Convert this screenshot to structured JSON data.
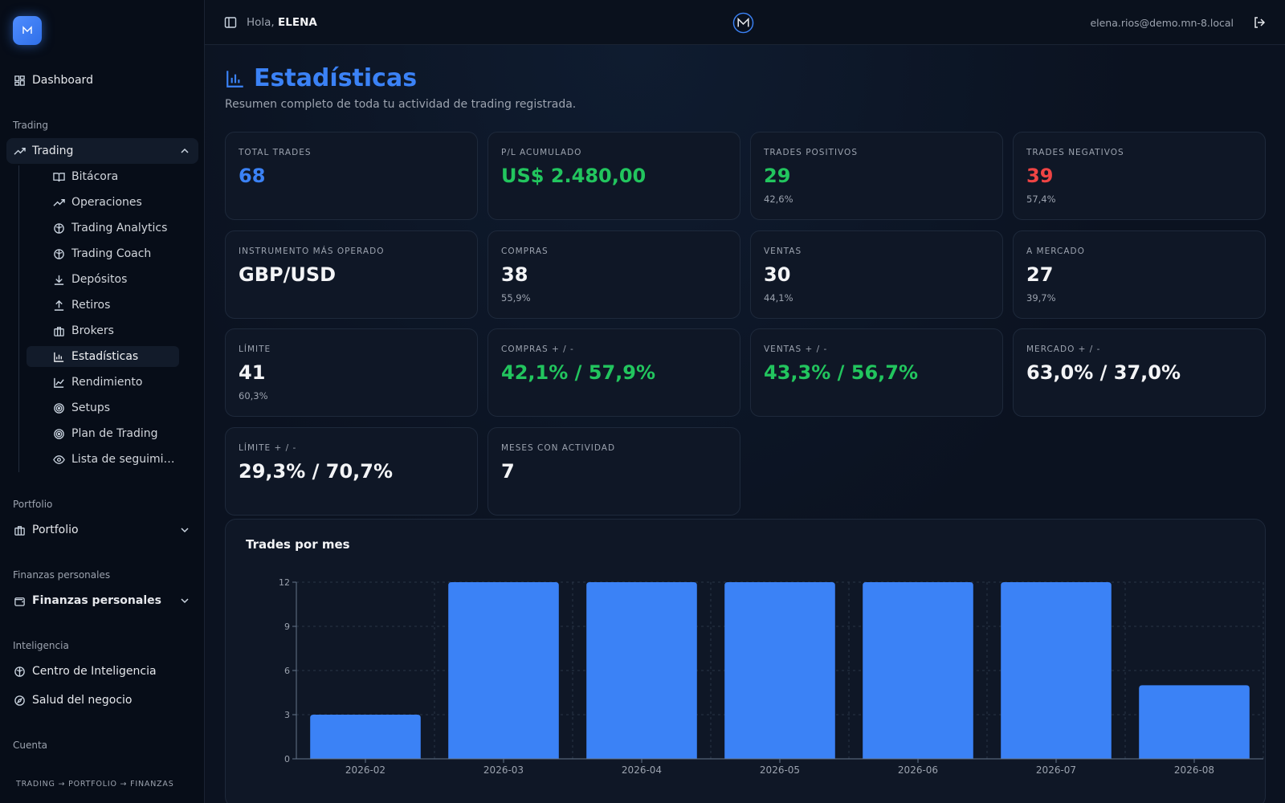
{
  "sidebar": {
    "dashboard": "Dashboard",
    "sections": {
      "trading": "Trading",
      "portfolio": "Portfolio",
      "finanzas": "Finanzas personales",
      "inteligencia": "Inteligencia",
      "cuenta": "Cuenta"
    },
    "trading_group": "Trading",
    "trading_items": [
      "Bitácora",
      "Operaciones",
      "Trading Analytics",
      "Trading Coach",
      "Depósitos",
      "Retiros",
      "Brokers",
      "Estadísticas",
      "Rendimiento",
      "Setups",
      "Plan de Trading",
      "Lista de seguimiento"
    ],
    "active_item": "Estadísticas",
    "portfolio_group": "Portfolio",
    "finanzas_group": "Finanzas personales",
    "inteligencia_items": [
      "Centro de Inteligencia",
      "Salud del negocio"
    ],
    "footer_trail": "TRADING → PORTFOLIO → FINANZAS"
  },
  "header": {
    "greeting": "Hola,",
    "user": "ELENA",
    "email": "elena.rios@demo.mn-8.local"
  },
  "page": {
    "title": "Estadísticas",
    "subtitle": "Resumen completo de toda tu actividad de trading registrada."
  },
  "cards": [
    {
      "label": "TOTAL TRADES",
      "value": "68",
      "sub": "",
      "color": "blue"
    },
    {
      "label": "P/L ACUMULADO",
      "value": "US$ 2.480,00",
      "sub": "",
      "color": "green"
    },
    {
      "label": "TRADES POSITIVOS",
      "value": "29",
      "sub": "42,6%",
      "color": "green"
    },
    {
      "label": "TRADES NEGATIVOS",
      "value": "39",
      "sub": "57,4%",
      "color": "red"
    },
    {
      "label": "INSTRUMENTO MÁS OPERADO",
      "value": "GBP/USD",
      "sub": "",
      "color": "white"
    },
    {
      "label": "COMPRAS",
      "value": "38",
      "sub": "55,9%",
      "color": "white"
    },
    {
      "label": "VENTAS",
      "value": "30",
      "sub": "44,1%",
      "color": "white"
    },
    {
      "label": "A MERCADO",
      "value": "27",
      "sub": "39,7%",
      "color": "white"
    },
    {
      "label": "LÍMITE",
      "value": "41",
      "sub": "60,3%",
      "color": "white"
    },
    {
      "label": "COMPRAS + / -",
      "value": "42,1% / 57,9%",
      "sub": "",
      "color": "green"
    },
    {
      "label": "VENTAS + / -",
      "value": "43,3% / 56,7%",
      "sub": "",
      "color": "green"
    },
    {
      "label": "MERCADO + / -",
      "value": "63,0% / 37,0%",
      "sub": "",
      "color": "white"
    },
    {
      "label": "LÍMITE + / -",
      "value": "29,3% / 70,7%",
      "sub": "",
      "color": "white"
    },
    {
      "label": "MESES CON ACTIVIDAD",
      "value": "7",
      "sub": "",
      "color": "white"
    }
  ],
  "chart_data": {
    "type": "bar",
    "title": "Trades por mes",
    "categories": [
      "2026-02",
      "2026-03",
      "2026-04",
      "2026-05",
      "2026-06",
      "2026-07",
      "2026-08"
    ],
    "values": [
      3,
      12,
      12,
      12,
      12,
      12,
      5
    ],
    "yticks": [
      "0",
      "3",
      "6",
      "9",
      "12"
    ],
    "ylim": [
      0,
      12
    ],
    "bar_color": "#3b82f6",
    "grid": true
  }
}
